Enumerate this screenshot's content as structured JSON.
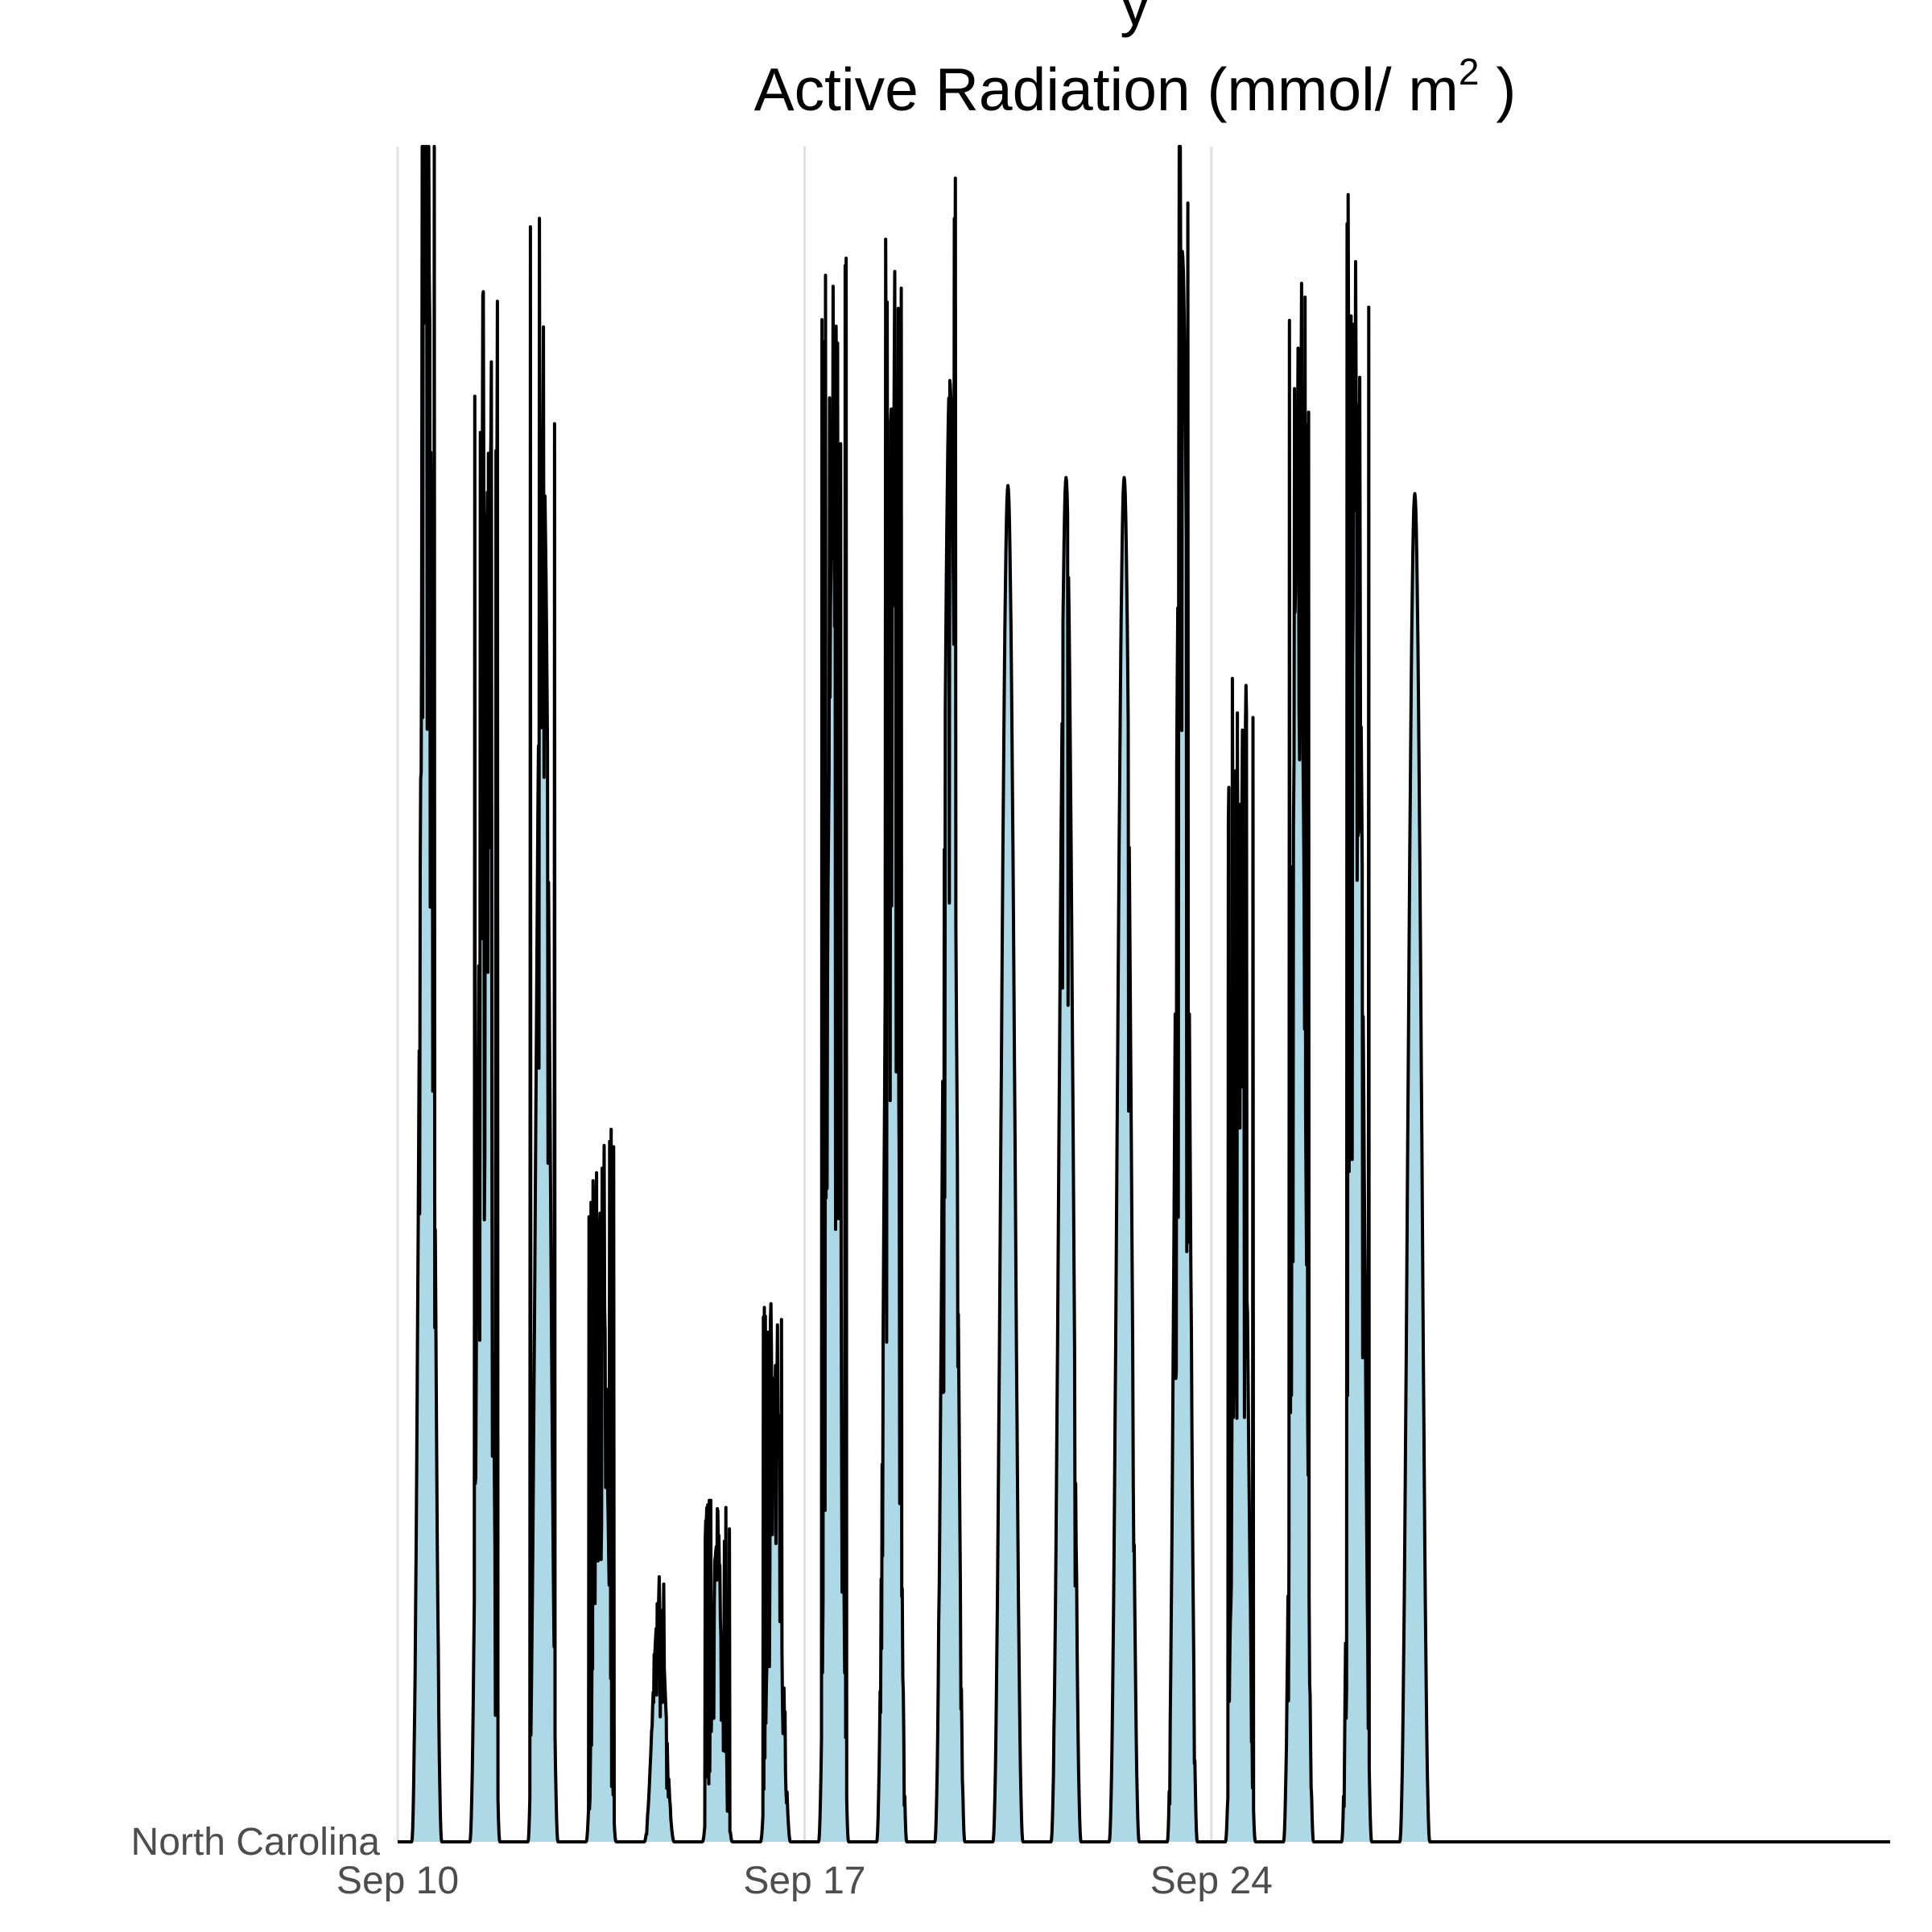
{
  "chart_data": {
    "type": "area",
    "title_line1": "y",
    "title_line2": "Active Radiation (mmol/ m",
    "title_sup": "2",
    "title_end": " )",
    "y_category": "North Carolina",
    "x_ticks": [
      {
        "label": "Sep 10",
        "day": 10
      },
      {
        "label": "Sep 17",
        "day": 17
      },
      {
        "label": "Sep 24",
        "day": 24
      }
    ],
    "xlim_days": [
      10,
      28
    ],
    "ylim": [
      0,
      2100
    ],
    "fill_color": "#add8e6",
    "line_color": "#000000",
    "grid": "vertical-only",
    "daily_peaks": [
      {
        "date": "Sep 10",
        "day": 10.5,
        "peak": 2100,
        "noise": 0.25
      },
      {
        "date": "Sep 11",
        "day": 11.5,
        "peak": 1690,
        "noise": 0.3
      },
      {
        "date": "Sep 12",
        "day": 12.5,
        "peak": 1750,
        "noise": 0.2
      },
      {
        "date": "Sep 13",
        "day": 13.5,
        "peak": 770,
        "noise": 0.45
      },
      {
        "date": "Sep 14",
        "day": 14.5,
        "peak": 295,
        "noise": 0.3
      },
      {
        "date": "Sep 15",
        "day": 15.5,
        "peak": 370,
        "noise": 0.5
      },
      {
        "date": "Sep 16",
        "day": 16.5,
        "peak": 590,
        "noise": 0.5
      },
      {
        "date": "Sep 17",
        "day": 17.5,
        "peak": 1710,
        "noise": 0.45
      },
      {
        "date": "Sep 18",
        "day": 18.5,
        "peak": 1780,
        "noise": 0.25
      },
      {
        "date": "Sep 19",
        "day": 19.5,
        "peak": 1810,
        "noise": 0.2
      },
      {
        "date": "Sep 20",
        "day": 20.5,
        "peak": 1680,
        "noise": 0.0
      },
      {
        "date": "Sep 21",
        "day": 21.5,
        "peak": 1690,
        "noise": 0.05
      },
      {
        "date": "Sep 22",
        "day": 22.5,
        "peak": 1690,
        "noise": 0.02
      },
      {
        "date": "Sep 23",
        "day": 23.5,
        "peak": 1970,
        "noise": 0.2
      },
      {
        "date": "Sep 24",
        "day": 24.5,
        "peak": 1260,
        "noise": 0.5
      },
      {
        "date": "Sep 25",
        "day": 25.5,
        "peak": 1730,
        "noise": 0.4
      },
      {
        "date": "Sep 26",
        "day": 26.5,
        "peak": 1780,
        "noise": 0.4
      },
      {
        "date": "Sep 27",
        "day": 27.5,
        "peak": 1670,
        "noise": 0.0
      }
    ]
  }
}
